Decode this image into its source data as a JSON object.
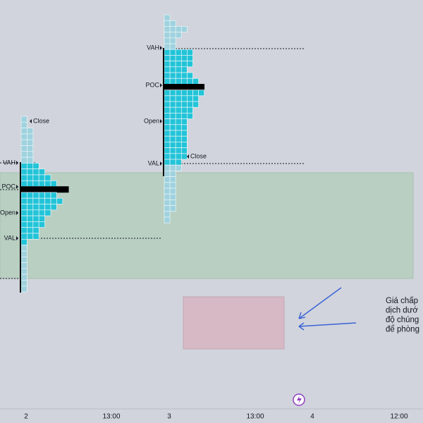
{
  "profiles": [
    {
      "vah": "VAH",
      "poc": "POC",
      "open": "Open",
      "val": "VAL",
      "close": "Close"
    },
    {
      "vah": "VAH",
      "poc": "POC",
      "open": "Open",
      "val": "VAL",
      "close": "Close"
    }
  ],
  "x_axis": {
    "labels": [
      "2",
      "13:00",
      "3",
      "13:00",
      "4",
      "12:00"
    ]
  },
  "note": {
    "lines": [
      "Giá chấp",
      "dịch dướ",
      "độ chúng",
      "để phòng"
    ]
  }
}
